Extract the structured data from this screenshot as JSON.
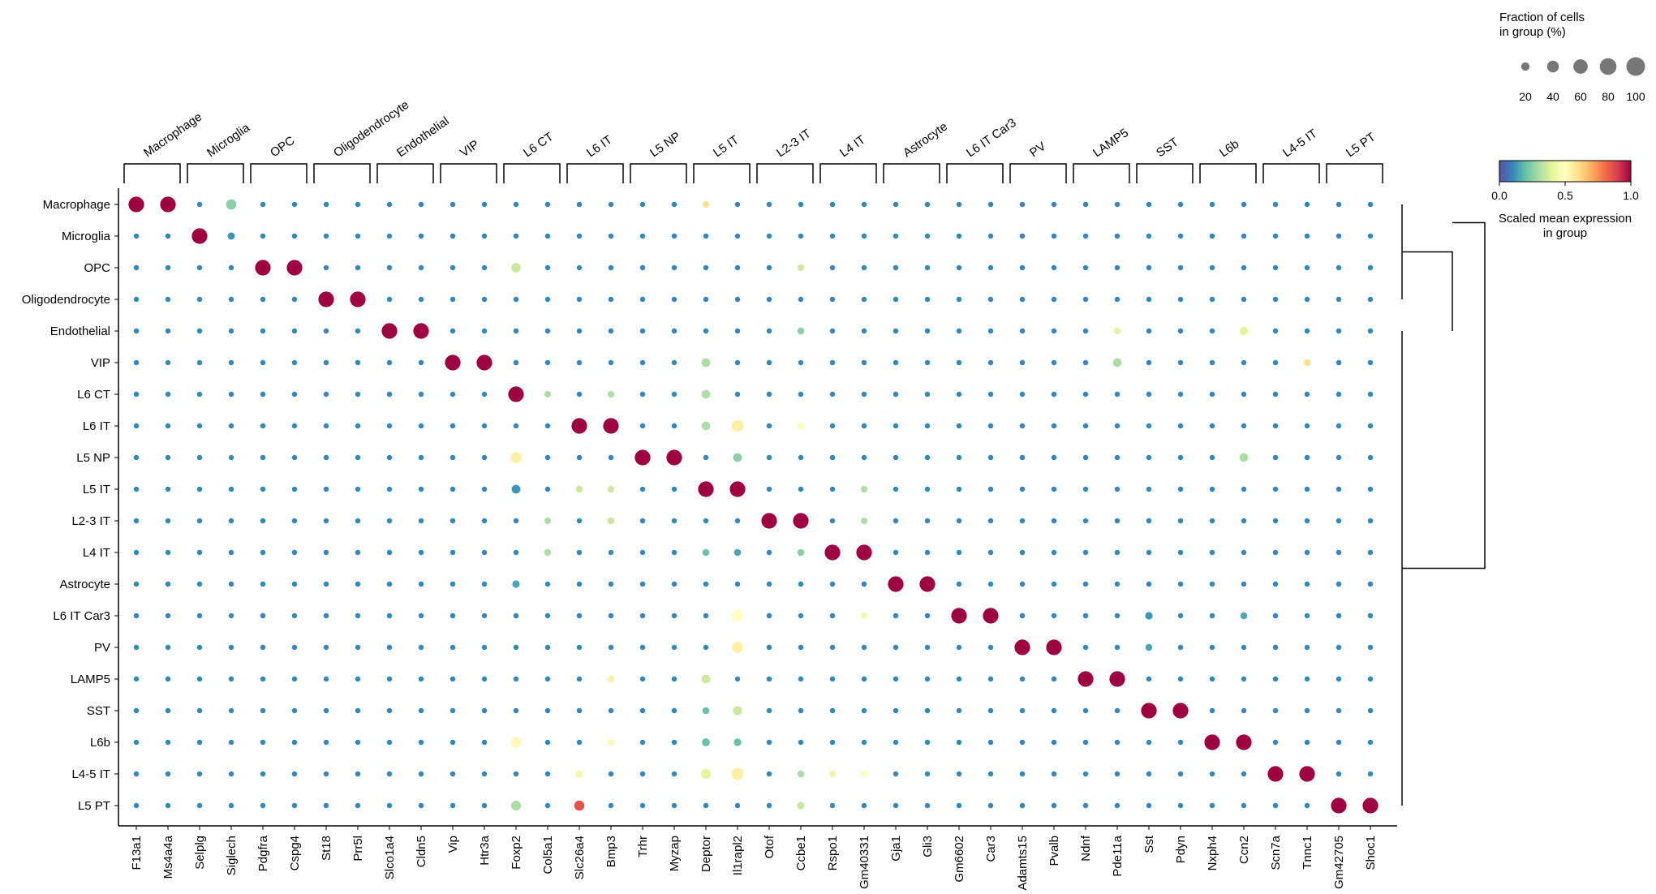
{
  "chart_data": {
    "type": "dotplot",
    "title": "",
    "xlabel": "",
    "ylabel": "",
    "groups": [
      "Macrophage",
      "Microglia",
      "OPC",
      "Oligodendrocyte",
      "Endothelial",
      "VIP",
      "L6 CT",
      "L6 IT",
      "L5 NP",
      "L5 IT",
      "L2-3 IT",
      "L4 IT",
      "Astrocyte",
      "L6 IT Car3",
      "PV",
      "LAMP5",
      "SST",
      "L6b",
      "L4-5 IT",
      "L5 PT"
    ],
    "genes": [
      "F13a1",
      "Ms4a4a",
      "Selplg",
      "Siglech",
      "Pdgfra",
      "Cspg4",
      "St18",
      "Prr5l",
      "Slco1a4",
      "Cldn5",
      "Vip",
      "Htr3a",
      "Foxp2",
      "Col5a1",
      "Slc26a4",
      "Bmp3",
      "Trhr",
      "Myzap",
      "Deptor",
      "Il1rapl2",
      "Otof",
      "Ccbe1",
      "Rspo1",
      "Gm40331",
      "Gja1",
      "Gli3",
      "Gm6602",
      "Car3",
      "Adamts15",
      "Pvalb",
      "Ndnf",
      "Pde11a",
      "Sst",
      "Pdyn",
      "Nxph4",
      "Ccn2",
      "Scn7a",
      "Tnnc1",
      "Gm42705",
      "Shoc1"
    ],
    "gene_groups": [
      {
        "label": "Macrophage",
        "start": 0,
        "end": 1
      },
      {
        "label": "Microglia",
        "start": 2,
        "end": 3
      },
      {
        "label": "OPC",
        "start": 4,
        "end": 5
      },
      {
        "label": "Oligodendrocyte",
        "start": 6,
        "end": 7
      },
      {
        "label": "Endothelial",
        "start": 8,
        "end": 9
      },
      {
        "label": "VIP",
        "start": 10,
        "end": 11
      },
      {
        "label": "L6 CT",
        "start": 12,
        "end": 13
      },
      {
        "label": "L6 IT",
        "start": 14,
        "end": 15
      },
      {
        "label": "L5 NP",
        "start": 16,
        "end": 17
      },
      {
        "label": "L5 IT",
        "start": 18,
        "end": 19
      },
      {
        "label": "L2-3 IT",
        "start": 20,
        "end": 21
      },
      {
        "label": "L4 IT",
        "start": 22,
        "end": 23
      },
      {
        "label": "Astrocyte",
        "start": 24,
        "end": 25
      },
      {
        "label": "L6 IT Car3",
        "start": 26,
        "end": 27
      },
      {
        "label": "PV",
        "start": 28,
        "end": 29
      },
      {
        "label": "LAMP5",
        "start": 30,
        "end": 31
      },
      {
        "label": "SST",
        "start": 32,
        "end": 33
      },
      {
        "label": "L6b",
        "start": 34,
        "end": 35
      },
      {
        "label": "L4-5 IT",
        "start": 36,
        "end": 37
      },
      {
        "label": "L5 PT",
        "start": 38,
        "end": 39
      }
    ],
    "strong_fraction": 70,
    "strong_expression": 1.0,
    "background_fraction": 8,
    "background_expression": 0.1,
    "secondary_strong": [
      [
        0,
        3,
        30,
        0.25
      ],
      [
        0,
        18,
        12,
        0.6
      ],
      [
        1,
        3,
        15,
        0.12
      ]
    ],
    "notable": [
      [
        2,
        12,
        26,
        0.35
      ],
      [
        2,
        21,
        12,
        0.35
      ],
      [
        4,
        21,
        14,
        0.25
      ],
      [
        4,
        31,
        12,
        0.4
      ],
      [
        4,
        35,
        20,
        0.4
      ],
      [
        5,
        31,
        22,
        0.3
      ],
      [
        5,
        18,
        22,
        0.3
      ],
      [
        5,
        37,
        14,
        0.6
      ],
      [
        6,
        18,
        22,
        0.3
      ],
      [
        6,
        15,
        12,
        0.3
      ],
      [
        6,
        13,
        12,
        0.3
      ],
      [
        7,
        19,
        40,
        0.55
      ],
      [
        7,
        21,
        18,
        0.5
      ],
      [
        7,
        18,
        22,
        0.3
      ],
      [
        8,
        12,
        35,
        0.55
      ],
      [
        8,
        19,
        22,
        0.25
      ],
      [
        8,
        35,
        22,
        0.3
      ],
      [
        9,
        12,
        22,
        0.12
      ],
      [
        9,
        14,
        14,
        0.35
      ],
      [
        9,
        15,
        12,
        0.35
      ],
      [
        9,
        23,
        12,
        0.3
      ],
      [
        10,
        13,
        12,
        0.3
      ],
      [
        10,
        15,
        14,
        0.35
      ],
      [
        10,
        23,
        12,
        0.3
      ],
      [
        11,
        13,
        14,
        0.3
      ],
      [
        11,
        21,
        14,
        0.25
      ],
      [
        11,
        18,
        14,
        0.2
      ],
      [
        11,
        19,
        14,
        0.15
      ],
      [
        12,
        12,
        16,
        0.15
      ],
      [
        13,
        19,
        38,
        0.5
      ],
      [
        13,
        32,
        16,
        0.12
      ],
      [
        13,
        35,
        14,
        0.15
      ],
      [
        13,
        23,
        12,
        0.45
      ],
      [
        14,
        19,
        35,
        0.55
      ],
      [
        14,
        32,
        14,
        0.15
      ],
      [
        15,
        18,
        22,
        0.35
      ],
      [
        15,
        15,
        14,
        0.55
      ],
      [
        16,
        19,
        24,
        0.35
      ],
      [
        16,
        18,
        14,
        0.2
      ],
      [
        17,
        12,
        32,
        0.52
      ],
      [
        17,
        18,
        18,
        0.2
      ],
      [
        17,
        19,
        16,
        0.2
      ],
      [
        17,
        15,
        14,
        0.52
      ],
      [
        18,
        19,
        42,
        0.55
      ],
      [
        18,
        18,
        28,
        0.4
      ],
      [
        18,
        14,
        16,
        0.45
      ],
      [
        18,
        21,
        14,
        0.3
      ],
      [
        18,
        23,
        12,
        0.5
      ],
      [
        18,
        22,
        12,
        0.55
      ],
      [
        19,
        12,
        28,
        0.3
      ],
      [
        19,
        14,
        30,
        0.85
      ],
      [
        19,
        21,
        16,
        0.35
      ]
    ],
    "fraction_legend": {
      "title_line1": "Fraction of cells",
      "title_line2": "in group (%)",
      "values": [
        20,
        40,
        60,
        80,
        100
      ],
      "labels": [
        "20",
        "40",
        "60",
        "80",
        "100"
      ]
    },
    "colorbar": {
      "colormap": "Spectral_r",
      "range": [
        0.0,
        1.0
      ],
      "ticks": [
        "0.0",
        "0.5",
        "1.0"
      ],
      "label_line1": "Scaled mean expression",
      "label_line2": "in group"
    },
    "dendrogram": {
      "split_after_row": 3,
      "side": "right"
    }
  }
}
